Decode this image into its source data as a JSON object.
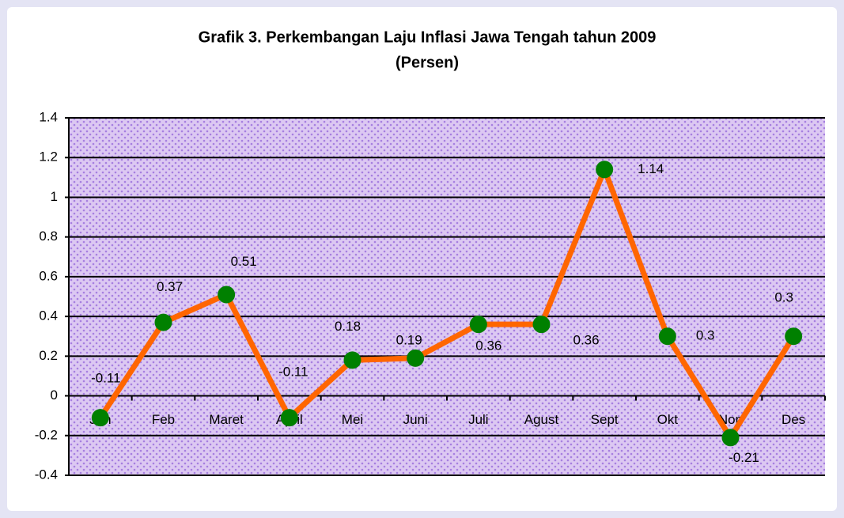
{
  "chart_data": {
    "type": "line",
    "title": "Grafik 3. Perkembangan Laju Inflasi Jawa Tengah tahun 2009",
    "subtitle": "(Persen)",
    "categories": [
      "Jan",
      "Feb",
      "Maret",
      "April",
      "Mei",
      "Juni",
      "Juli",
      "Agust",
      "Sept",
      "Okt",
      "Nop",
      "Des"
    ],
    "series": [
      {
        "name": "Inflasi",
        "color": "#ff6600",
        "marker_color": "#008000",
        "values": [
          -0.11,
          0.37,
          0.51,
          -0.11,
          0.18,
          0.19,
          0.36,
          0.36,
          1.14,
          0.3,
          -0.21,
          0.3
        ]
      }
    ],
    "ylim": [
      -0.4,
      1.4
    ],
    "yticks": [
      -0.4,
      -0.2,
      0,
      0.2,
      0.4,
      0.6,
      0.8,
      1,
      1.2,
      1.4
    ],
    "grid": true
  }
}
